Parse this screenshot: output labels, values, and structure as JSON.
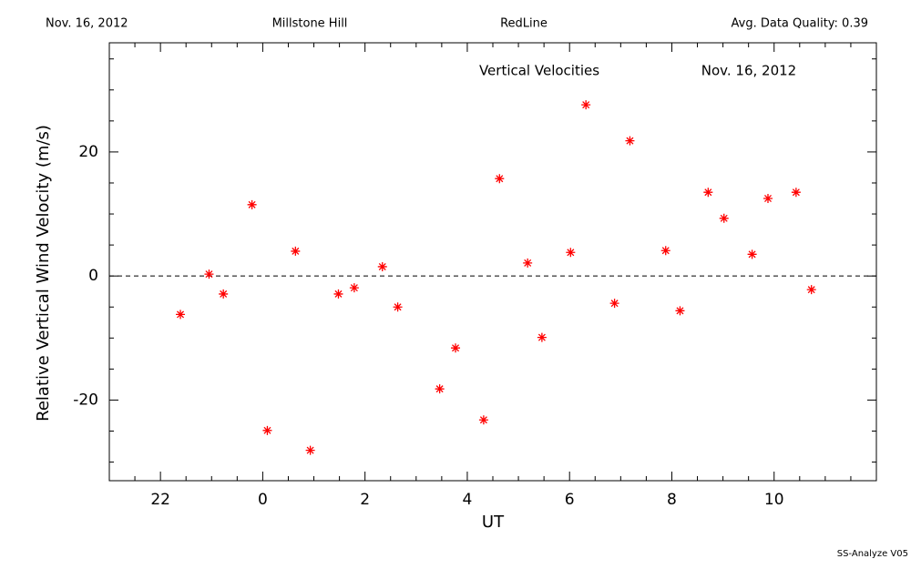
{
  "header": {
    "date": "Nov. 16, 2012",
    "site": "Millstone Hill",
    "line": "RedLine",
    "quality": "Avg. Data Quality: 0.39"
  },
  "footer": "SS-Analyze V05",
  "chart_data": {
    "type": "scatter",
    "title": "Vertical Velocities",
    "subtitle": "Nov. 16, 2012",
    "x_label": "UT",
    "y_label": "Relative Vertical Wind Velocity (m/s)",
    "series": [
      {
        "name": "Vertical Velocities",
        "color": "#ff0000",
        "x": [
          -1.61,
          -1.05,
          -0.77,
          -0.21,
          0.09,
          0.64,
          0.93,
          1.48,
          1.79,
          2.34,
          2.64,
          3.46,
          3.77,
          4.32,
          4.63,
          5.18,
          5.46,
          6.02,
          6.32,
          6.88,
          7.18,
          7.88,
          8.16,
          8.71,
          9.02,
          9.57,
          9.88,
          10.43,
          10.73
        ],
        "values": [
          -6.2,
          0.3,
          -2.9,
          11.5,
          -24.9,
          4.0,
          -28.1,
          -2.9,
          -1.9,
          1.5,
          -5.0,
          -18.2,
          -11.6,
          -23.2,
          15.7,
          2.1,
          -9.9,
          3.8,
          27.6,
          -4.4,
          21.8,
          4.1,
          -5.6,
          13.5,
          9.3,
          3.5,
          12.5,
          13.5,
          -2.2
        ]
      }
    ],
    "xlim": [
      -3,
      12
    ],
    "xticks": [
      {
        "value": -2,
        "label": "22"
      },
      0,
      2,
      4,
      6,
      8,
      10
    ],
    "xminorticks": [
      -2.5,
      -1.5,
      -1,
      -0.5,
      0.5,
      1,
      1.5,
      2.5,
      3,
      3.5,
      4.5,
      5,
      5.5,
      6.5,
      7,
      7.5,
      8.5,
      9,
      9.5,
      10.5,
      11,
      11.5
    ],
    "ylim": [
      -33,
      37.6
    ],
    "yticks": [
      -20,
      0,
      20
    ],
    "yminorticks": [
      -30,
      -25,
      -15,
      -10,
      -5,
      5,
      10,
      15,
      25,
      30,
      35
    ],
    "zero_line": 0
  }
}
